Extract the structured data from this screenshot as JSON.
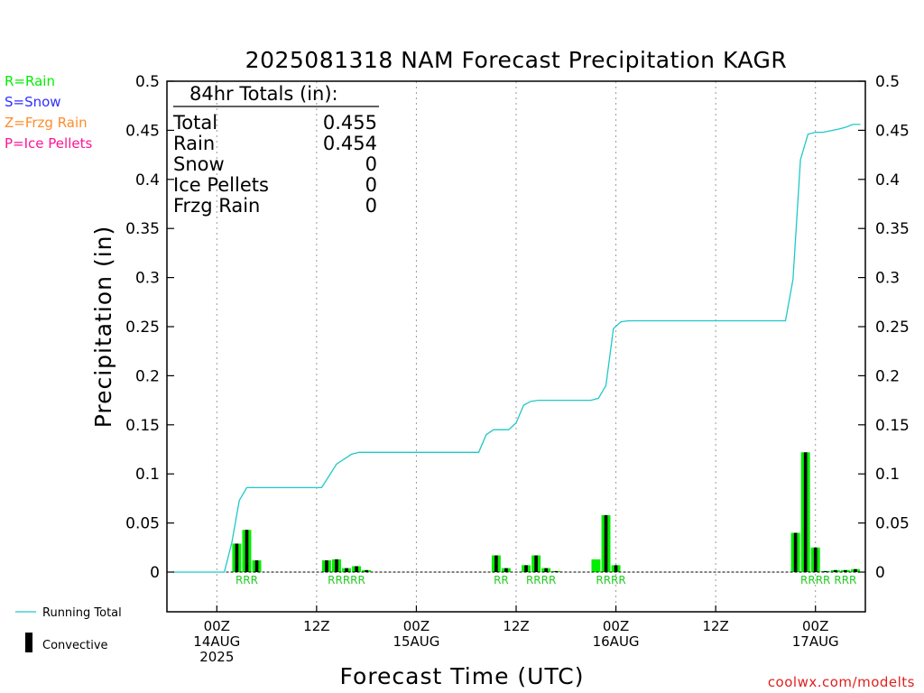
{
  "chart_data": {
    "type": "bar",
    "title": "2025081318 NAM Forecast Precipitation KAGR",
    "ylabel": "Precipitation (in)",
    "xlabel": "Forecast Time (UTC)",
    "ylim": [
      -0.04,
      0.5
    ],
    "yticks": [
      "0.5",
      "0.45",
      "0.4",
      "0.35",
      "0.3",
      "0.25",
      "0.2",
      "0.15",
      "0.1",
      "0.05",
      "0"
    ],
    "xlim_hours": [
      -5,
      65
    ],
    "xticks": [
      {
        "hour": 0,
        "lines": [
          "00Z",
          "14AUG",
          "2025"
        ]
      },
      {
        "hour": 10,
        "lines": [
          "12Z"
        ]
      },
      {
        "hour": 20,
        "lines": [
          "00Z",
          "15AUG"
        ]
      },
      {
        "hour": 30,
        "lines": [
          "12Z"
        ]
      },
      {
        "hour": 40,
        "lines": [
          "00Z",
          "16AUG"
        ]
      },
      {
        "hour": 50,
        "lines": [
          "12Z"
        ]
      },
      {
        "hour": 60,
        "lines": [
          "00Z",
          "17AUG"
        ]
      }
    ],
    "bars": [
      {
        "t": 2,
        "total": 0.029,
        "convective": 0.029
      },
      {
        "t": 3,
        "total": 0.043,
        "convective": 0.043
      },
      {
        "t": 4,
        "total": 0.012,
        "convective": 0.012
      },
      {
        "t": 11,
        "total": 0.012,
        "convective": 0.012
      },
      {
        "t": 12,
        "total": 0.013,
        "convective": 0.013
      },
      {
        "t": 13,
        "total": 0.004,
        "convective": 0.004
      },
      {
        "t": 14,
        "total": 0.006,
        "convective": 0.006
      },
      {
        "t": 15,
        "total": 0.002,
        "convective": 0.002
      },
      {
        "t": 28,
        "total": 0.017,
        "convective": 0.017
      },
      {
        "t": 29,
        "total": 0.004,
        "convective": 0.004
      },
      {
        "t": 31,
        "total": 0.007,
        "convective": 0.007
      },
      {
        "t": 32,
        "total": 0.017,
        "convective": 0.017
      },
      {
        "t": 33,
        "total": 0.004,
        "convective": 0.004
      },
      {
        "t": 34,
        "total": 0.001,
        "convective": 0.001
      },
      {
        "t": 38,
        "total": 0.013,
        "convective": 0
      },
      {
        "t": 39,
        "total": 0.058,
        "convective": 0.058
      },
      {
        "t": 40,
        "total": 0.007,
        "convective": 0.007
      },
      {
        "t": 58,
        "total": 0.04,
        "convective": 0.04
      },
      {
        "t": 59,
        "total": 0.122,
        "convective": 0.122
      },
      {
        "t": 60,
        "total": 0.025,
        "convective": 0.025
      },
      {
        "t": 61,
        "total": 0.001,
        "convective": 0.001
      },
      {
        "t": 62,
        "total": 0.002,
        "convective": 0.002
      },
      {
        "t": 63,
        "total": 0.002,
        "convective": 0.002
      },
      {
        "t": 64,
        "total": 0.003,
        "convective": 0.003
      }
    ],
    "running_total": [
      [
        -4.5,
        0
      ],
      [
        0.75,
        0
      ],
      [
        1.5,
        0.03
      ],
      [
        2.25,
        0.073
      ],
      [
        3.0,
        0.086
      ],
      [
        10.5,
        0.086
      ],
      [
        11.25,
        0.098
      ],
      [
        12.0,
        0.11
      ],
      [
        13.5,
        0.12
      ],
      [
        14.25,
        0.122
      ],
      [
        26.25,
        0.122
      ],
      [
        27.0,
        0.14
      ],
      [
        27.75,
        0.145
      ],
      [
        29.25,
        0.145
      ],
      [
        30.0,
        0.152
      ],
      [
        30.75,
        0.17
      ],
      [
        31.5,
        0.174
      ],
      [
        32.25,
        0.175
      ],
      [
        37.5,
        0.175
      ],
      [
        38.25,
        0.177
      ],
      [
        39.0,
        0.19
      ],
      [
        39.75,
        0.248
      ],
      [
        40.5,
        0.255
      ],
      [
        41.25,
        0.256
      ],
      [
        57.0,
        0.256
      ],
      [
        57.75,
        0.298
      ],
      [
        58.5,
        0.42
      ],
      [
        59.25,
        0.446
      ],
      [
        60.0,
        0.448
      ],
      [
        60.75,
        0.448
      ],
      [
        62.25,
        0.451
      ],
      [
        63.0,
        0.453
      ],
      [
        63.75,
        0.456
      ],
      [
        64.5,
        0.456
      ]
    ],
    "type_labels": [
      {
        "t": 3,
        "text": "RRR"
      },
      {
        "t": 13,
        "text": "RRRRR"
      },
      {
        "t": 28.5,
        "text": "RR"
      },
      {
        "t": 32.5,
        "text": "RRRR"
      },
      {
        "t": 39.5,
        "text": "RRRR"
      },
      {
        "t": 60,
        "text": "RRRR"
      },
      {
        "t": 63,
        "text": "RRR"
      }
    ],
    "colors": {
      "rain": "#00ee00",
      "snow": "#3030ff",
      "frzg_rain": "#ff8c2a",
      "ice_pellets": "#ff1493",
      "running_total": "#20c8c8",
      "convective": "#000000",
      "credit": "#e0201e"
    }
  },
  "legend": {
    "rain": "R=Rain",
    "snow": "S=Snow",
    "frzg_rain": "Z=Frzg Rain",
    "ice_pellets": "P=Ice Pellets",
    "running_total": "Running Total",
    "convective": "Convective"
  },
  "totals": {
    "header": "84hr Totals (in):",
    "rows": [
      {
        "label": "Total",
        "value": "0.455"
      },
      {
        "label": "Rain",
        "value": "0.454"
      },
      {
        "label": "Snow",
        "value": "0"
      },
      {
        "label": "Ice Pellets",
        "value": "0"
      },
      {
        "label": "Frzg Rain",
        "value": "0"
      }
    ]
  },
  "credit": "coolwx.com/modelts"
}
